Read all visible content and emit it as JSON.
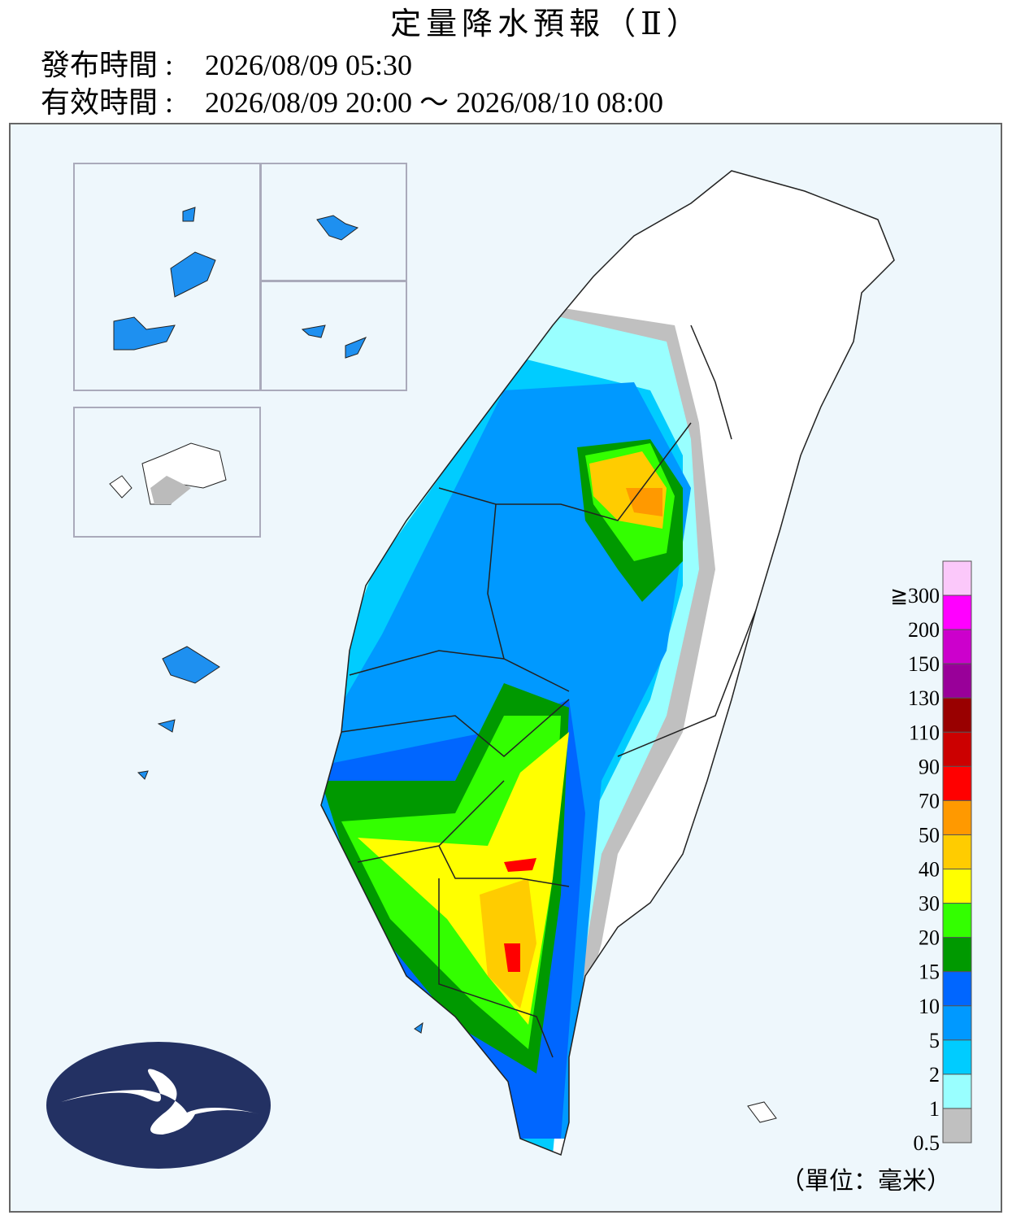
{
  "header": {
    "title": "定量降水預報（Ⅱ）",
    "issued_label": "發布時間 :",
    "issued": "2026/08/09 05:30",
    "valid_label": "有效時間 :",
    "valid": "2026/08/09 20:00 ～ 2026/08/10 08:00"
  },
  "legend": {
    "top_color": "#fbc8fa",
    "items": [
      {
        "label": "≧300",
        "color": "#ff00ff"
      },
      {
        "label": "200",
        "color": "#cc00cc"
      },
      {
        "label": "150",
        "color": "#990099"
      },
      {
        "label": "130",
        "color": "#990000"
      },
      {
        "label": "110",
        "color": "#cc0000"
      },
      {
        "label": "90",
        "color": "#ff0000"
      },
      {
        "label": "70",
        "color": "#ff9900"
      },
      {
        "label": "50",
        "color": "#ffcc00"
      },
      {
        "label": "40",
        "color": "#ffff00"
      },
      {
        "label": "30",
        "color": "#33ff00"
      },
      {
        "label": "20",
        "color": "#009900"
      },
      {
        "label": "15",
        "color": "#0066ff"
      },
      {
        "label": "10",
        "color": "#0099ff"
      },
      {
        "label": "5",
        "color": "#00ccff"
      },
      {
        "label": "2",
        "color": "#99ffff"
      },
      {
        "label": "1",
        "color": "#c0c0c0"
      },
      {
        "label": "0.5",
        "color": null
      }
    ],
    "unit": "（單位：毫米）"
  }
}
